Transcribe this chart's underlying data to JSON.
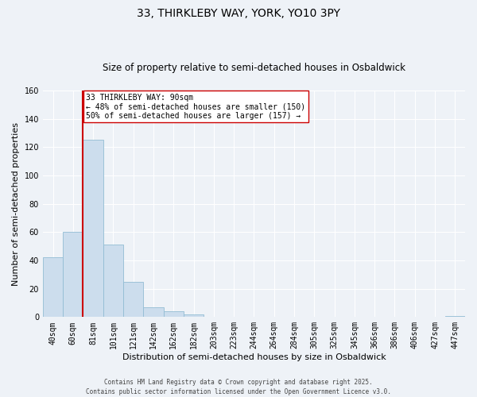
{
  "title": "33, THIRKLEBY WAY, YORK, YO10 3PY",
  "subtitle": "Size of property relative to semi-detached houses in Osbaldwick",
  "xlabel": "Distribution of semi-detached houses by size in Osbaldwick",
  "ylabel": "Number of semi-detached properties",
  "bin_labels": [
    "40sqm",
    "60sqm",
    "81sqm",
    "101sqm",
    "121sqm",
    "142sqm",
    "162sqm",
    "182sqm",
    "203sqm",
    "223sqm",
    "244sqm",
    "264sqm",
    "284sqm",
    "305sqm",
    "325sqm",
    "345sqm",
    "366sqm",
    "386sqm",
    "406sqm",
    "427sqm",
    "447sqm"
  ],
  "bar_values": [
    42,
    60,
    125,
    51,
    25,
    7,
    4,
    2,
    0,
    0,
    0,
    0,
    0,
    0,
    0,
    0,
    0,
    0,
    0,
    0,
    1
  ],
  "bar_color": "#ccdded",
  "bar_edge_color": "#92bcd4",
  "ylim": [
    0,
    160
  ],
  "yticks": [
    0,
    20,
    40,
    60,
    80,
    100,
    120,
    140,
    160
  ],
  "vline_color": "#cc0000",
  "vline_index": 1.5,
  "annotation_title": "33 THIRKLEBY WAY: 90sqm",
  "annotation_line1": "← 48% of semi-detached houses are smaller (150)",
  "annotation_line2": "50% of semi-detached houses are larger (157) →",
  "annotation_box_color": "#ffffff",
  "annotation_box_edge": "#cc0000",
  "footer_line1": "Contains HM Land Registry data © Crown copyright and database right 2025.",
  "footer_line2": "Contains public sector information licensed under the Open Government Licence v3.0.",
  "bg_color": "#eef2f7",
  "grid_color": "#ffffff",
  "title_fontsize": 10,
  "subtitle_fontsize": 8.5,
  "axis_label_fontsize": 8,
  "tick_fontsize": 7,
  "footer_fontsize": 5.5,
  "annotation_fontsize": 7
}
